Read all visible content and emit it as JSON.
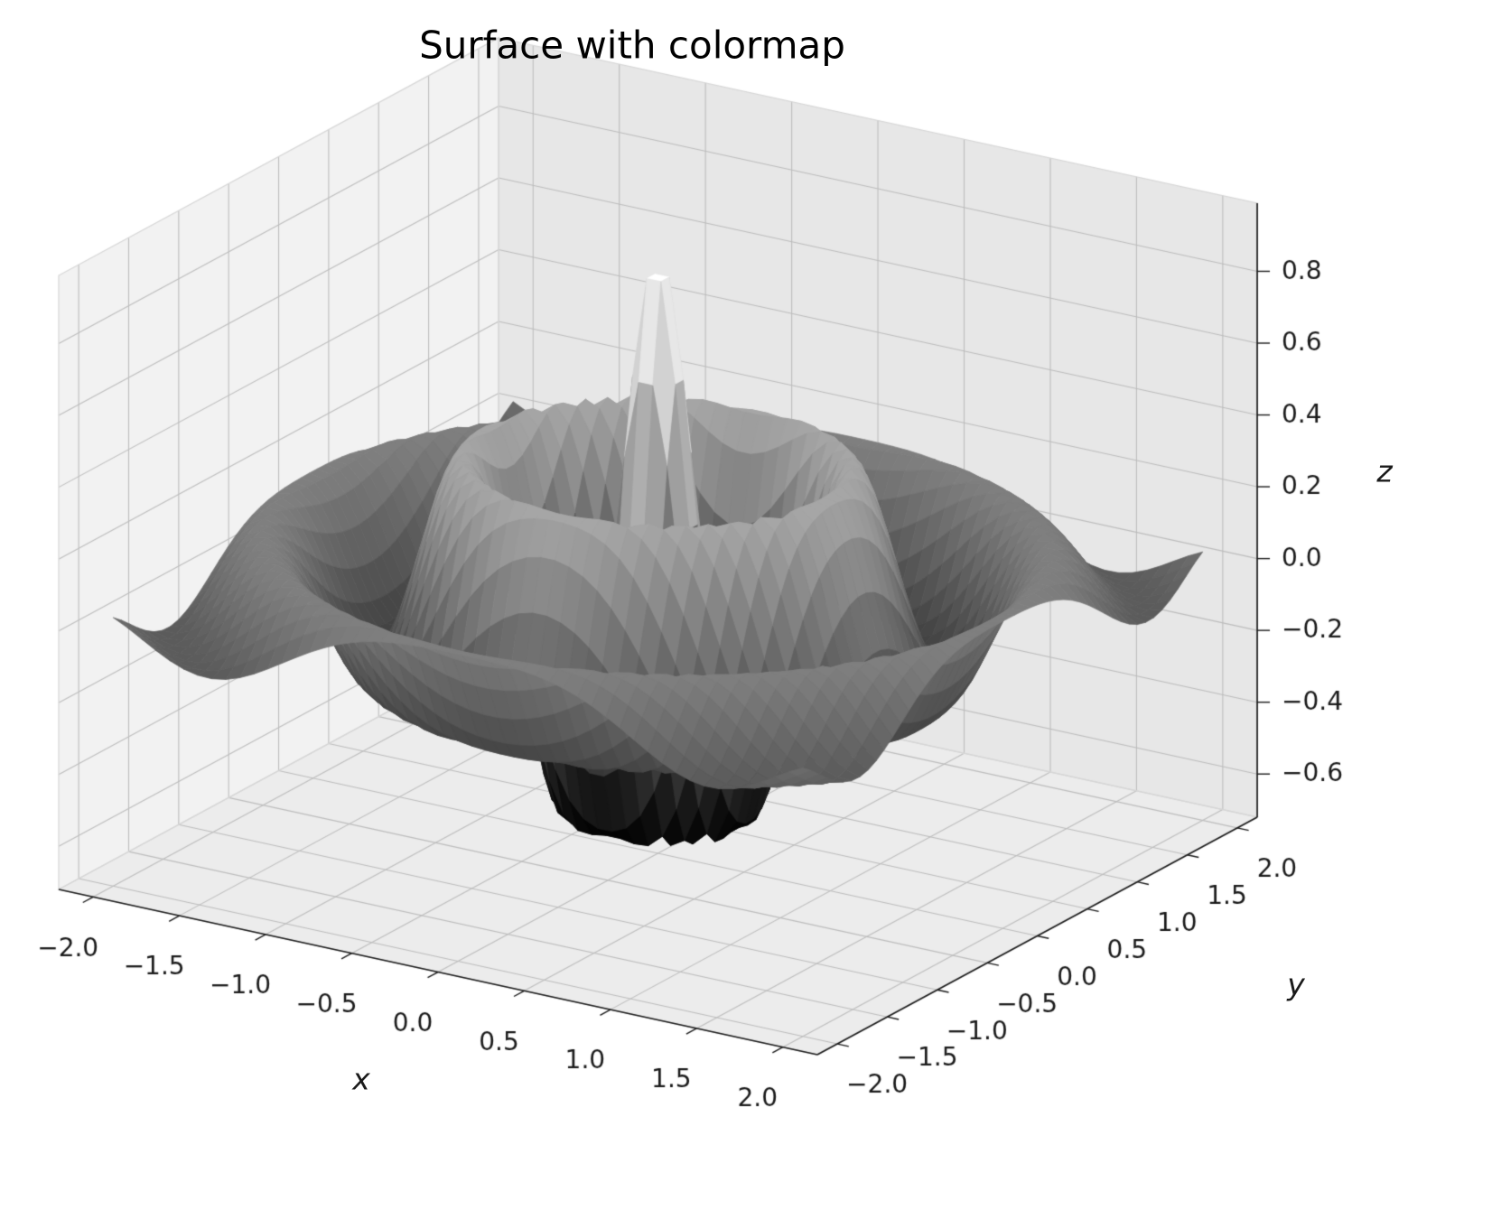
{
  "title": "Surface with colormap",
  "colors": {
    "background": "#ffffff",
    "colormap_start": "#000000",
    "colormap_end": "#ffffff",
    "pane_x": "#f2f2f2",
    "pane_y": "#e7e7e7",
    "pane_floor": "#ececec",
    "pane_edge": "#d6d6d6",
    "grid_line": "#bdbdbd",
    "axis_line": "#1a1a1a",
    "tick_label": "#1a1a1a",
    "title_color": "#000000"
  },
  "chart_data": {
    "type": "surface",
    "title": "Surface with colormap",
    "xlabel": "x",
    "ylabel": "y",
    "zlabel": "z",
    "colormap": "gray",
    "x_range": [
      -2,
      2
    ],
    "y_range": [
      -2,
      2
    ],
    "grid_points": 50,
    "z_function": "z = cos(2*pi*r) * exp(-r), r = sqrt(x^2 + y^2)",
    "z_params": {
      "angular_frequency": 6.283185307,
      "decay_rate": 1.0
    },
    "z_observed_min": -0.61,
    "z_observed_max": 0.88,
    "xlim": [
      -2.2,
      2.2
    ],
    "ylim": [
      -2.2,
      2.2
    ],
    "zlim": [
      -0.72,
      0.99
    ],
    "x_ticks": [
      -2,
      -1.5,
      -1,
      -0.5,
      0,
      0.5,
      1,
      1.5,
      2
    ],
    "x_tick_labels": [
      "−2.0",
      "−1.5",
      "−1.0",
      "−0.5",
      "0.0",
      "0.5",
      "1.0",
      "1.5",
      "2.0"
    ],
    "y_ticks": [
      -2,
      -1.5,
      -1,
      -0.5,
      0,
      0.5,
      1,
      1.5,
      2
    ],
    "y_tick_labels": [
      "−2.0",
      "−1.5",
      "−1.0",
      "−0.5",
      "0.0",
      "0.5",
      "1.0",
      "1.5",
      "2.0"
    ],
    "z_ticks": [
      -0.6,
      -0.4,
      -0.2,
      0,
      0.2,
      0.4,
      0.6,
      0.8
    ],
    "z_tick_labels": [
      "−0.6",
      "−0.4",
      "−0.2",
      "0.0",
      "0.2",
      "0.4",
      "0.6",
      "0.8"
    ],
    "view": {
      "elev": 30,
      "azim": -60
    },
    "grid": true,
    "legend": false
  }
}
